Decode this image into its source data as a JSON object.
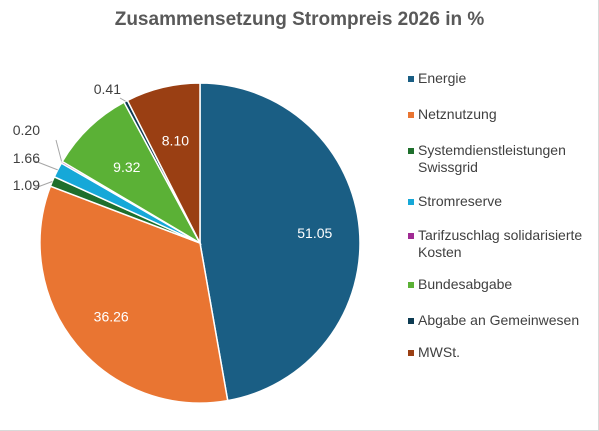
{
  "chart_data": {
    "type": "pie",
    "title": "Zusammensetzung Strompreis 2026 in %",
    "legend_position": "right",
    "slices": [
      {
        "label": "Energie",
        "value": 51.05,
        "display": "51.05",
        "color": "#1a5e84",
        "label_inside": true
      },
      {
        "label": "Netznutzung",
        "value": 36.26,
        "display": "36.26",
        "color": "#e97532",
        "label_inside": true
      },
      {
        "label": "Systemdienstleistungen Swissgrid",
        "value": 1.09,
        "display": "1.09",
        "color": "#1e6f2c",
        "label_inside": false
      },
      {
        "label": "Stromreserve",
        "value": 1.66,
        "display": "1.66",
        "color": "#16a8d8",
        "label_inside": false
      },
      {
        "label": "Tarifzuschlag solidarisierte Kosten",
        "value": 0.2,
        "display": "0.20",
        "color": "#a02b93",
        "label_inside": false
      },
      {
        "label": "Bundesabgabe",
        "value": 9.32,
        "display": "9.32",
        "color": "#5bb136",
        "label_inside": true
      },
      {
        "label": "Abgabe an Gemeinwesen",
        "value": 0.41,
        "display": "0.41",
        "color": "#0d3b52",
        "label_inside": false
      },
      {
        "label": "MWSt.",
        "value": 8.1,
        "display": "8.10",
        "color": "#9a3f13",
        "label_inside": true
      }
    ]
  }
}
